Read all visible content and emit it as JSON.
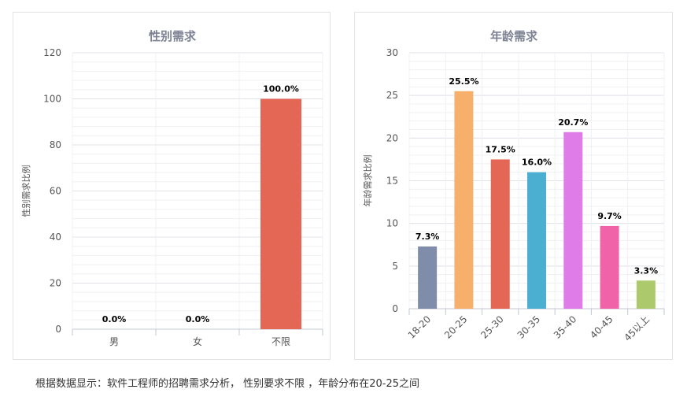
{
  "caption": "根据数据显示：软件工程师的招聘需求分析， 性别要求不限 ，年龄分布在20-25之间",
  "chart_data": [
    {
      "type": "bar",
      "title": "性别需求",
      "xlabel": "",
      "ylabel": "性别需求比例",
      "categories": [
        "男",
        "女",
        "不限"
      ],
      "values": [
        0,
        0,
        100
      ],
      "data_labels": [
        "0.0%",
        "0.0%",
        "100.0%"
      ],
      "colors": [
        "#e0e0e0",
        "#e0e0e0",
        "#e46655"
      ],
      "ylim": [
        0,
        120
      ],
      "yticks": [
        0,
        20,
        40,
        60,
        80,
        100,
        120
      ],
      "grid": true,
      "legend": "none"
    },
    {
      "type": "bar",
      "title": "年龄需求",
      "xlabel": "",
      "ylabel": "年龄需求比例",
      "categories": [
        "18-20",
        "20-25",
        "25-30",
        "30-35",
        "35-40",
        "40-45",
        "45以上"
      ],
      "values": [
        7.3,
        25.5,
        17.5,
        16.0,
        20.7,
        9.7,
        3.3
      ],
      "data_labels": [
        "7.3%",
        "25.5%",
        "17.5%",
        "16.0%",
        "20.7%",
        "9.7%",
        "3.3%"
      ],
      "colors": [
        "#7f8daa",
        "#f7b06c",
        "#e46655",
        "#4bafd1",
        "#e07ce8",
        "#f063a8",
        "#acc96c"
      ],
      "ylim": [
        0,
        30
      ],
      "yticks": [
        0,
        5,
        10,
        15,
        20,
        25,
        30
      ],
      "grid": true,
      "legend": "none"
    }
  ]
}
